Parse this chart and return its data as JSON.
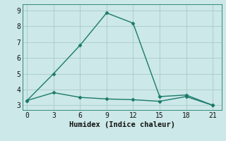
{
  "xlabel": "Humidex (Indice chaleur)",
  "background_color": "#cce8e8",
  "grid_color": "#aecece",
  "line_color": "#1a7a6a",
  "line1_x": [
    0,
    3,
    6,
    9,
    12,
    15,
    18,
    21
  ],
  "line1_y": [
    3.3,
    3.8,
    3.5,
    3.4,
    3.35,
    3.25,
    3.55,
    3.0
  ],
  "line2_x": [
    0,
    3,
    6,
    9,
    12,
    15,
    18,
    21
  ],
  "line2_y": [
    3.3,
    5.0,
    6.8,
    8.85,
    8.2,
    3.55,
    3.65,
    3.0
  ],
  "xlim": [
    -0.5,
    22
  ],
  "ylim": [
    2.7,
    9.4
  ],
  "xticks": [
    0,
    3,
    6,
    9,
    12,
    15,
    18,
    21
  ],
  "yticks": [
    3,
    4,
    5,
    6,
    7,
    8,
    9
  ],
  "marker": "D",
  "marker_size": 2.5,
  "linewidth": 1.0,
  "xlabel_fontsize": 7.5,
  "tick_fontsize": 7
}
